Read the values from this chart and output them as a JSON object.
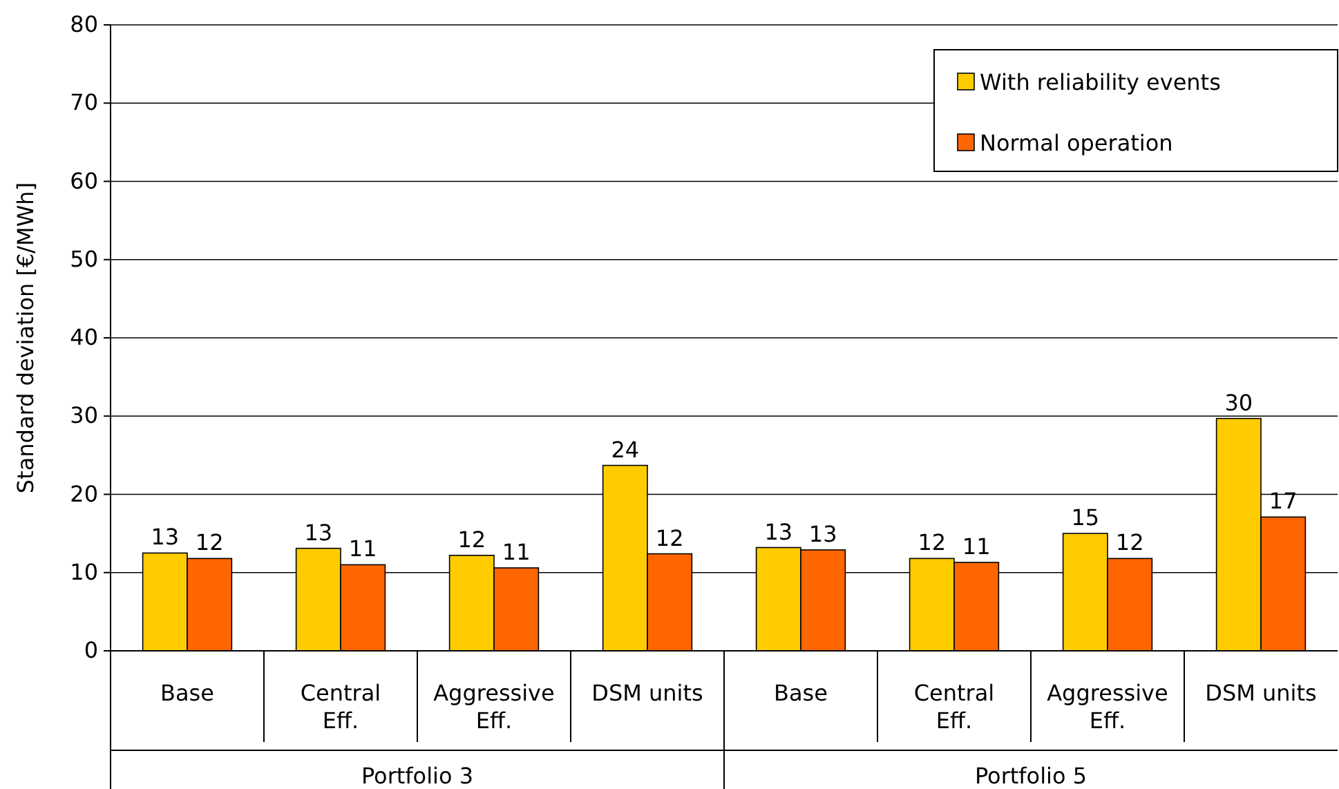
{
  "chart_data": {
    "type": "bar",
    "ylabel": "Standard deviation [€/MWh]",
    "categories": [
      "Base",
      "Central\nEff.",
      "Aggressive\nEff.",
      "DSM units",
      "Base",
      "Central\nEff.",
      "Aggressive\nEff.",
      "DSM units"
    ],
    "series": [
      {
        "name": "With reliability events",
        "color": "#ffcc00",
        "values": [
          12.5,
          13.1,
          12.2,
          23.7,
          13.2,
          11.8,
          15.0,
          29.7
        ],
        "value_labels": [
          "13",
          "13",
          "12",
          "24",
          "13",
          "12",
          "15",
          "30"
        ]
      },
      {
        "name": "Normal operation",
        "color": "#ff6600",
        "values": [
          11.8,
          11.0,
          10.6,
          12.4,
          12.9,
          11.3,
          11.8,
          17.1
        ],
        "value_labels": [
          "12",
          "11",
          "11",
          "12",
          "13",
          "11",
          "12",
          "17"
        ]
      }
    ],
    "annotations": [
      "Portfolio 3",
      "Portfolio 5"
    ],
    "ylim": [
      0,
      80
    ],
    "yticks": [
      0,
      10,
      20,
      30,
      40,
      50,
      60,
      70,
      80
    ],
    "grid": "y",
    "legend": "top right"
  }
}
